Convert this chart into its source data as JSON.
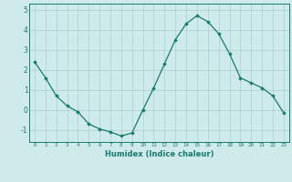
{
  "x": [
    0,
    1,
    2,
    3,
    4,
    5,
    6,
    7,
    8,
    9,
    10,
    11,
    12,
    13,
    14,
    15,
    16,
    17,
    18,
    19,
    20,
    21,
    22,
    23
  ],
  "y": [
    2.4,
    1.6,
    0.7,
    0.2,
    -0.1,
    -0.7,
    -0.95,
    -1.1,
    -1.3,
    -1.15,
    0.0,
    1.1,
    2.3,
    3.5,
    4.3,
    4.7,
    4.4,
    3.8,
    2.8,
    1.6,
    1.35,
    1.1,
    0.7,
    -0.15
  ],
  "line_color": "#1a7a6e",
  "marker": "D",
  "marker_size": 1.8,
  "xlabel": "Humidex (Indice chaleur)",
  "ylim": [
    -1.6,
    5.3
  ],
  "xlim": [
    -0.5,
    23.5
  ],
  "yticks": [
    -1,
    0,
    1,
    2,
    3,
    4,
    5
  ],
  "xticks": [
    0,
    1,
    2,
    3,
    4,
    5,
    6,
    7,
    8,
    9,
    10,
    11,
    12,
    13,
    14,
    15,
    16,
    17,
    18,
    19,
    20,
    21,
    22,
    23
  ],
  "bg_color": "#ceeaea",
  "grid_color": "#aacfcf",
  "tick_color": "#1a7a6e",
  "label_color": "#1a7a6e"
}
